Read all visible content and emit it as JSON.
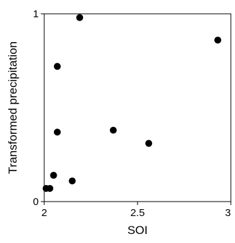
{
  "chart_data": {
    "type": "scatter",
    "xlabel": "SOI",
    "ylabel": "Transformed precipitation",
    "xlim": [
      2,
      3
    ],
    "ylim": [
      0,
      1
    ],
    "xticks": [
      2,
      2.5,
      3
    ],
    "yticks": [
      0,
      1
    ],
    "x_tick_labels": [
      "2",
      "2.5",
      "3"
    ],
    "y_tick_labels": [
      "0",
      "1"
    ],
    "grid": false,
    "legend": "none",
    "marker_color": "#000000",
    "series": [
      {
        "points": [
          {
            "x": 2.19,
            "y": 0.98
          },
          {
            "x": 2.93,
            "y": 0.86
          },
          {
            "x": 2.07,
            "y": 0.72
          },
          {
            "x": 2.07,
            "y": 0.37
          },
          {
            "x": 2.37,
            "y": 0.38
          },
          {
            "x": 2.56,
            "y": 0.31
          },
          {
            "x": 2.05,
            "y": 0.14
          },
          {
            "x": 2.15,
            "y": 0.11
          },
          {
            "x": 2.01,
            "y": 0.07
          },
          {
            "x": 2.03,
            "y": 0.07
          }
        ]
      }
    ]
  }
}
